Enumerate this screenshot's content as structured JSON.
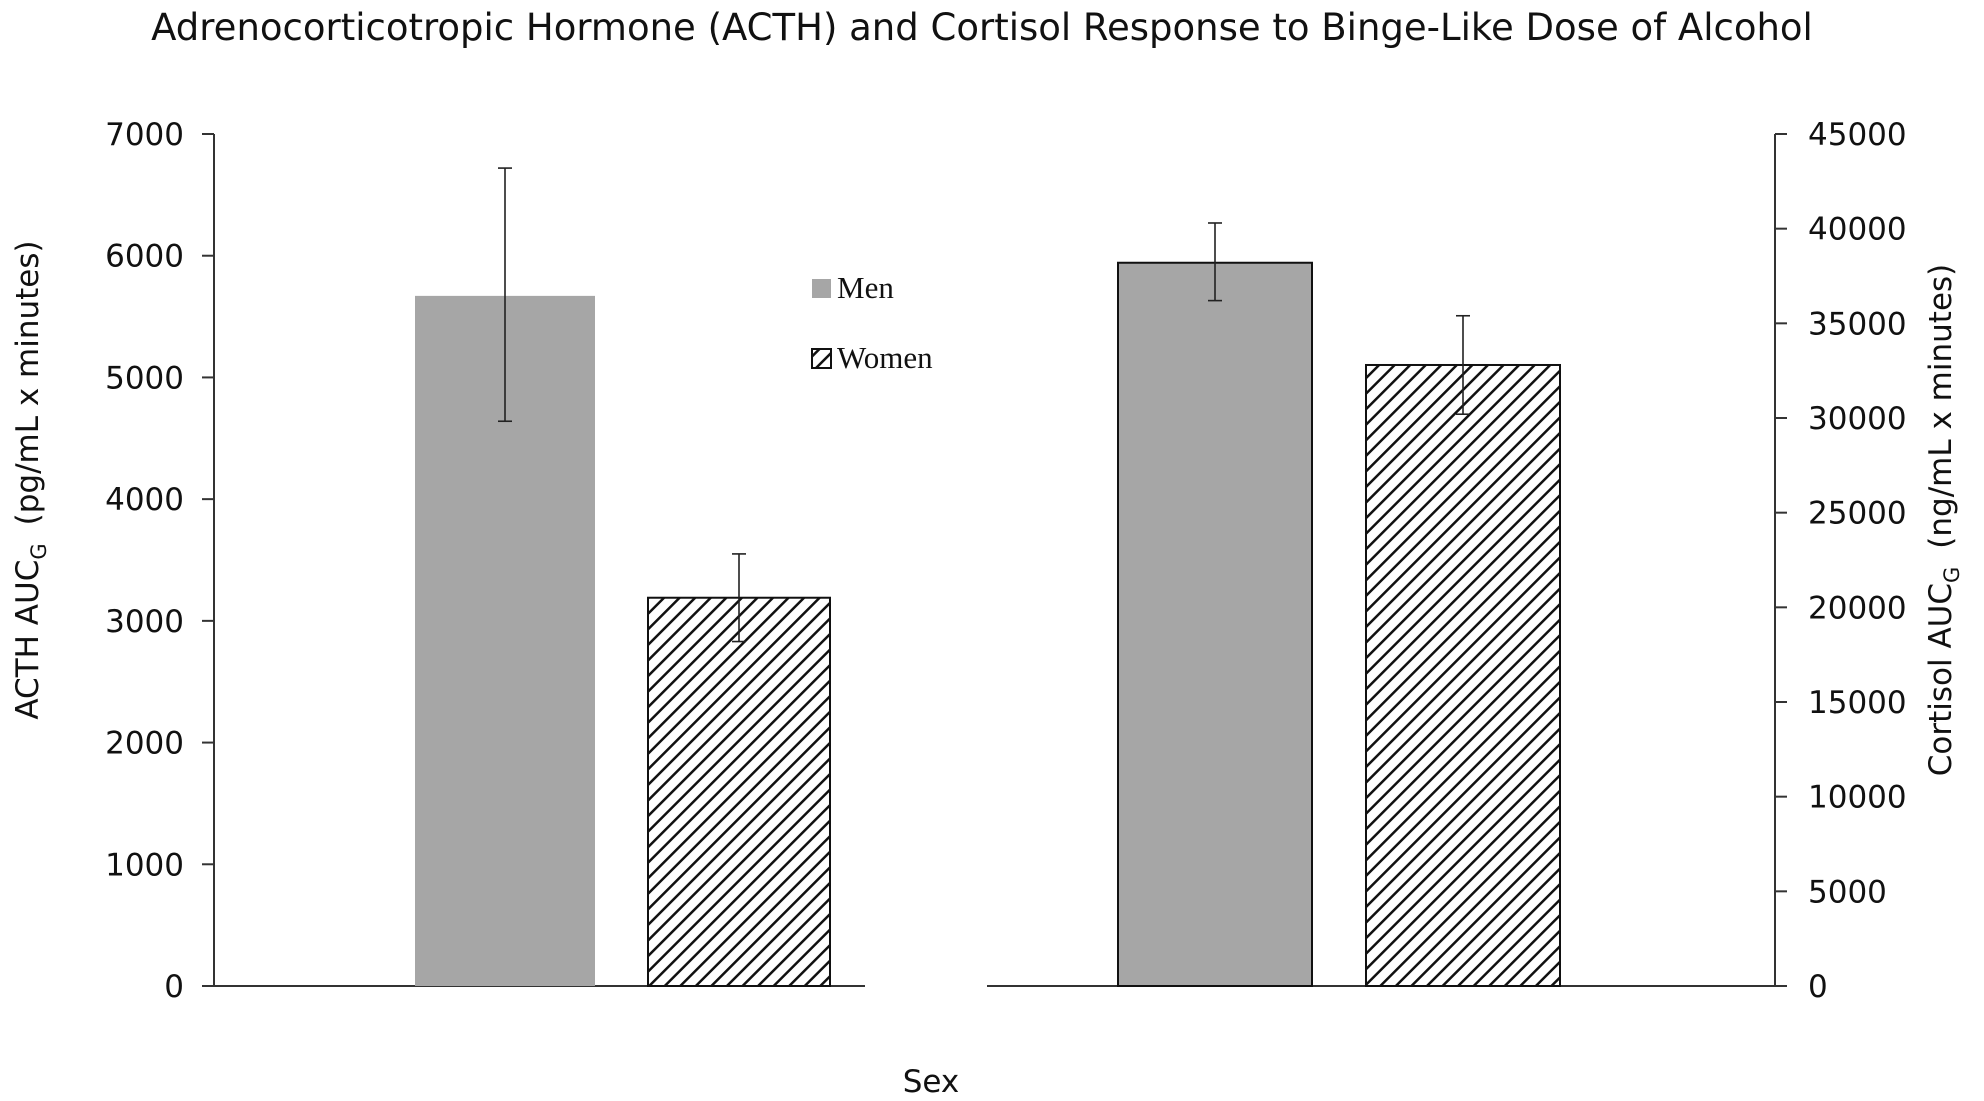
{
  "chart_data": {
    "type": "bar",
    "title": "Adrenocorticotropic Hormone (ACTH) and Cortisol Response to Binge-Like Dose of Alcohol",
    "xlabel": "Sex",
    "left_axis": {
      "label_main": "ACTH AUC",
      "label_sub": "G",
      "label_units": "(pg/mL x minutes)",
      "ylim": [
        0,
        7000
      ],
      "ticks": [
        0,
        1000,
        2000,
        3000,
        4000,
        5000,
        6000,
        7000
      ]
    },
    "right_axis": {
      "label_main": "Cortisol AUC",
      "label_sub": "G",
      "label_units": "(ng/mL x minutes)",
      "ylim": [
        0,
        45000
      ],
      "ticks": [
        0,
        5000,
        10000,
        15000,
        20000,
        25000,
        30000,
        35000,
        40000,
        45000
      ]
    },
    "legend": {
      "placement": "top-center of left panel"
    },
    "series": [
      {
        "name": "Men",
        "fill": "#a6a6a6",
        "pattern": "solid"
      },
      {
        "name": "Women",
        "fill": "#ffffff",
        "pattern": "diagonal-hatch"
      }
    ],
    "groups": [
      {
        "hormone": "ACTH",
        "axis": "left",
        "bars": [
          {
            "series": "Men",
            "value": 5670,
            "error_low": 4640,
            "error_high": 6720
          },
          {
            "series": "Women",
            "value": 3190,
            "error_low": 2830,
            "error_high": 3550
          }
        ]
      },
      {
        "hormone": "Cortisol",
        "axis": "right",
        "bars": [
          {
            "series": "Men",
            "value": 38200,
            "error_low": 36200,
            "error_high": 40300
          },
          {
            "series": "Women",
            "value": 32800,
            "error_low": 30200,
            "error_high": 35400
          }
        ]
      }
    ],
    "grid": false
  }
}
